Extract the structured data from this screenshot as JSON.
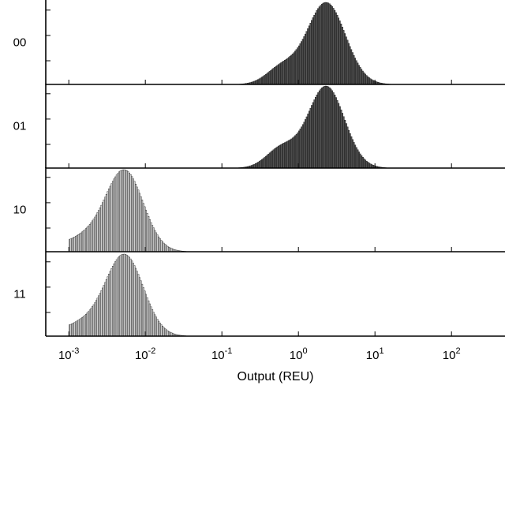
{
  "chart_data": {
    "type": "histogram",
    "layout": "stacked-panels",
    "xlabel": "Output (REU)",
    "xscale": "log",
    "xlim": [
      0.0005,
      500
    ],
    "x_ticks": [
      {
        "value": 0.001,
        "base": "10",
        "exp": "-3"
      },
      {
        "value": 0.01,
        "base": "10",
        "exp": "-2"
      },
      {
        "value": 0.1,
        "base": "10",
        "exp": "-1"
      },
      {
        "value": 1,
        "base": "10",
        "exp": "0"
      },
      {
        "value": 10,
        "base": "10",
        "exp": "1"
      },
      {
        "value": 100,
        "base": "10",
        "exp": "2"
      }
    ],
    "colors": {
      "high": "#555555",
      "low": "#cfcfcf",
      "edge": "#000000"
    },
    "panels": [
      {
        "label": "00",
        "color": "high",
        "distribution": {
          "min": 0.05,
          "max": 60,
          "components": [
            {
              "mu": 2.3,
              "sigma": 0.58,
              "weight": 1.0
            },
            {
              "mu": 0.6,
              "sigma": 0.45,
              "weight": 0.2
            }
          ]
        }
      },
      {
        "label": "01",
        "color": "high",
        "distribution": {
          "min": 0.1,
          "max": 60,
          "components": [
            {
              "mu": 2.3,
              "sigma": 0.55,
              "weight": 1.0
            },
            {
              "mu": 0.6,
              "sigma": 0.45,
              "weight": 0.24
            }
          ]
        }
      },
      {
        "label": "10",
        "color": "low",
        "distribution": {
          "min": 0.001,
          "max": 0.04,
          "components": [
            {
              "mu": 0.0055,
              "sigma": 0.55,
              "weight": 1.0
            },
            {
              "mu": 0.002,
              "sigma": 0.8,
              "weight": 0.22
            }
          ]
        }
      },
      {
        "label": "11",
        "color": "low",
        "distribution": {
          "min": 0.001,
          "max": 0.04,
          "components": [
            {
              "mu": 0.0055,
              "sigma": 0.55,
              "weight": 1.0
            },
            {
              "mu": 0.002,
              "sigma": 0.8,
              "weight": 0.2
            }
          ]
        }
      }
    ]
  }
}
